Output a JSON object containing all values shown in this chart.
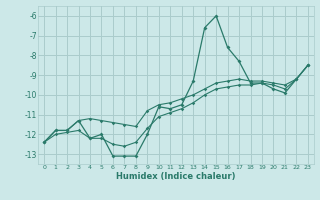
{
  "xlabel": "Humidex (Indice chaleur)",
  "ylabel": "",
  "bg_color": "#cce8e8",
  "grid_color": "#aacccc",
  "line_color": "#2a7a6a",
  "x_values": [
    0,
    1,
    2,
    3,
    4,
    5,
    6,
    7,
    8,
    9,
    10,
    11,
    12,
    13,
    14,
    15,
    16,
    17,
    18,
    19,
    20,
    21,
    22,
    23
  ],
  "y_main": [
    -12.4,
    -11.8,
    -11.8,
    -11.3,
    -12.2,
    -12.0,
    -13.1,
    -13.1,
    -13.1,
    -12.0,
    -10.6,
    -10.7,
    -10.5,
    -9.3,
    -6.6,
    -6.0,
    -7.6,
    -8.3,
    -9.4,
    -9.4,
    -9.7,
    -9.9,
    -9.2,
    -8.5
  ],
  "y_upper": [
    -12.4,
    -11.8,
    -11.8,
    -11.3,
    -11.2,
    -11.3,
    -11.4,
    -11.5,
    -11.6,
    -10.8,
    -10.5,
    -10.4,
    -10.2,
    -10.0,
    -9.7,
    -9.4,
    -9.3,
    -9.2,
    -9.3,
    -9.3,
    -9.4,
    -9.5,
    -9.2,
    -8.5
  ],
  "y_lower": [
    -12.4,
    -12.0,
    -11.9,
    -11.8,
    -12.2,
    -12.2,
    -12.5,
    -12.6,
    -12.4,
    -11.7,
    -11.1,
    -10.9,
    -10.7,
    -10.4,
    -10.0,
    -9.7,
    -9.6,
    -9.5,
    -9.5,
    -9.4,
    -9.5,
    -9.7,
    -9.2,
    -8.5
  ],
  "ylim": [
    -13.5,
    -5.5
  ],
  "xlim": [
    -0.5,
    23.5
  ],
  "yticks": [
    -6,
    -7,
    -8,
    -9,
    -10,
    -11,
    -12,
    -13
  ],
  "xticks": [
    0,
    1,
    2,
    3,
    4,
    5,
    6,
    7,
    8,
    9,
    10,
    11,
    12,
    13,
    14,
    15,
    16,
    17,
    18,
    19,
    20,
    21,
    22,
    23
  ],
  "xlabel_fontsize": 6,
  "xtick_fontsize": 4.5,
  "ytick_fontsize": 5.5
}
